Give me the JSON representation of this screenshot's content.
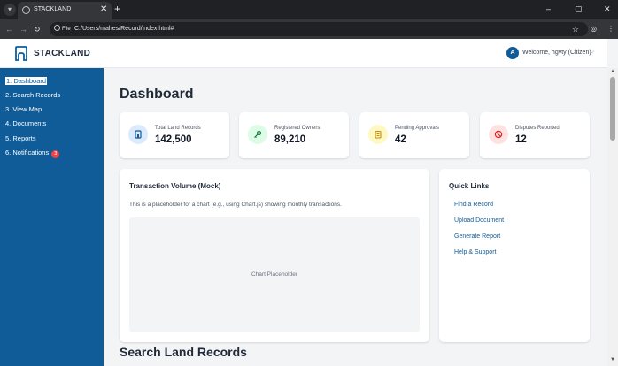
{
  "browser": {
    "tab_title": "STACKLAND",
    "tab_close": "✕",
    "new_tab": "+",
    "file_chip": "File",
    "url": "C:/Users/mahes/Record/index.html#",
    "minimize": "–",
    "restore": "▢",
    "close": "✕"
  },
  "header": {
    "logo_text": "STACKLAND",
    "avatar_initial": "A",
    "welcome": "Welcome, hgvty (Citizen)",
    "accent": "#0f5c99"
  },
  "sidebar": {
    "items": [
      {
        "num": "1.",
        "label": "Dashboard"
      },
      {
        "num": "2.",
        "label": "Search Records"
      },
      {
        "num": "3.",
        "label": "View Map"
      },
      {
        "num": "4.",
        "label": "Documents"
      },
      {
        "num": "5.",
        "label": "Reports"
      },
      {
        "num": "6.",
        "label": "Notifications",
        "badge": "3"
      }
    ]
  },
  "main": {
    "title": "Dashboard",
    "stats": [
      {
        "label": "Total Land Records",
        "value": "142,500",
        "icon": "clipboard-icon",
        "color": "#dbeafe"
      },
      {
        "label": "Registered Owners",
        "value": "89,210",
        "icon": "key-icon",
        "color": "#dcfce7"
      },
      {
        "label": "Pending Approvals",
        "value": "42",
        "icon": "clipboard-list-icon",
        "color": "#fef9c3"
      },
      {
        "label": "Disputes Reported",
        "value": "12",
        "icon": "ban-icon",
        "color": "#fee2e2"
      }
    ],
    "chart_panel": {
      "title": "Transaction Volume (Mock)",
      "description": "This is a placeholder for a chart (e.g., using Chart.js) showing monthly transactions.",
      "placeholder": "Chart Placeholder"
    },
    "quick_links": {
      "title": "Quick Links",
      "links": [
        "Find a Record",
        "Upload Document",
        "Generate Report",
        "Help & Support"
      ]
    },
    "next_section_title": "Search Land Records"
  }
}
